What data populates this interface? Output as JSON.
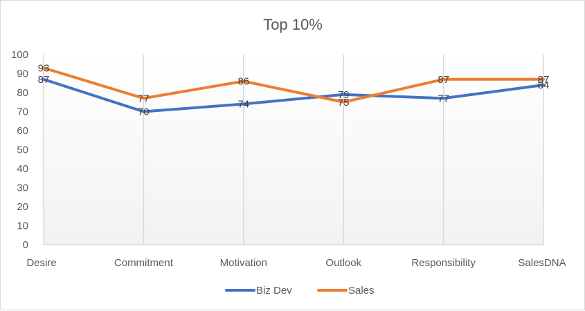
{
  "chart_data": {
    "type": "line",
    "title": "Top 10%",
    "categories": [
      "Desire",
      "Commitment",
      "Motivation",
      "Outlook",
      "Responsibility",
      "SalesDNA"
    ],
    "ylim": [
      0,
      100
    ],
    "yticks": [
      0,
      10,
      20,
      30,
      40,
      50,
      60,
      70,
      80,
      90,
      100
    ],
    "grid": "vertical-lines",
    "legend_position": "bottom",
    "series": [
      {
        "name": "Biz Dev",
        "color": "#4472c4",
        "values": [
          87,
          70,
          74,
          79,
          77,
          84
        ]
      },
      {
        "name": "Sales",
        "color": "#ed7d31",
        "values": [
          93,
          77,
          86,
          75,
          87,
          87
        ]
      }
    ]
  }
}
